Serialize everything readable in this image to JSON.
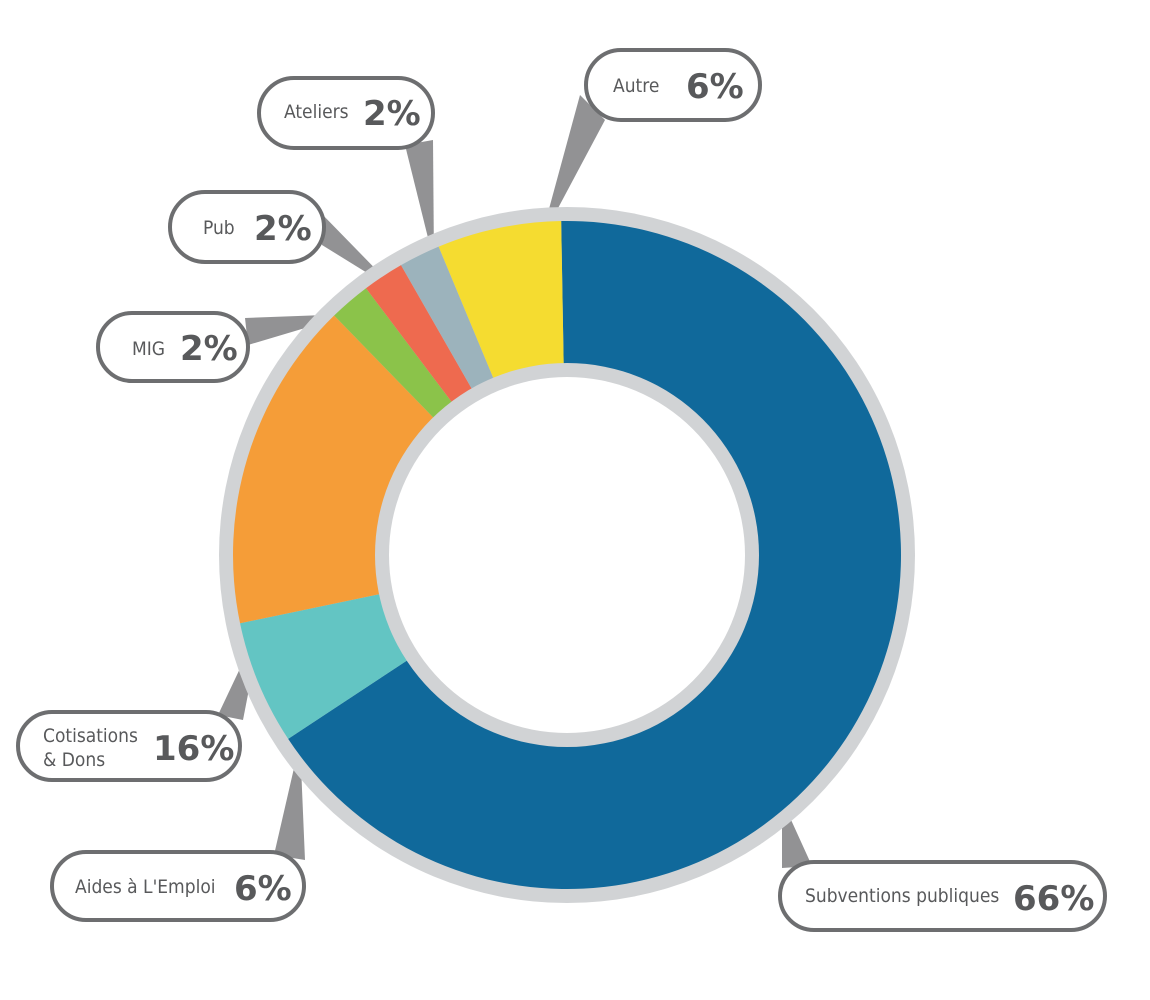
{
  "chart_data": {
    "type": "pie",
    "donut": true,
    "start": "top",
    "direction": "clockwise",
    "slices": [
      {
        "label": "Subventions publiques",
        "value": 66,
        "pct_text": "66%",
        "color": "#10699b"
      },
      {
        "label": "Aides à L'Emploi",
        "value": 6,
        "pct_text": "6%",
        "color": "#63c5c3"
      },
      {
        "label": "Cotisations & Dons",
        "label_lines": [
          "Cotisations",
          "& Dons"
        ],
        "value": 16,
        "pct_text": "16%",
        "color": "#f59d38"
      },
      {
        "label": "MIG",
        "value": 2,
        "pct_text": "2%",
        "color": "#8bc34a"
      },
      {
        "label": "Pub",
        "value": 2,
        "pct_text": "2%",
        "color": "#ee6a4f"
      },
      {
        "label": "Ateliers",
        "value": 2,
        "pct_text": "2%",
        "color": "#9cb3bc"
      },
      {
        "label": "Autre",
        "value": 6,
        "pct_text": "6%",
        "color": "#f5dc30"
      }
    ],
    "ring_color": "#d1d3d5",
    "callout_border_color": "#6d6e70",
    "text_color": "#58595b"
  }
}
